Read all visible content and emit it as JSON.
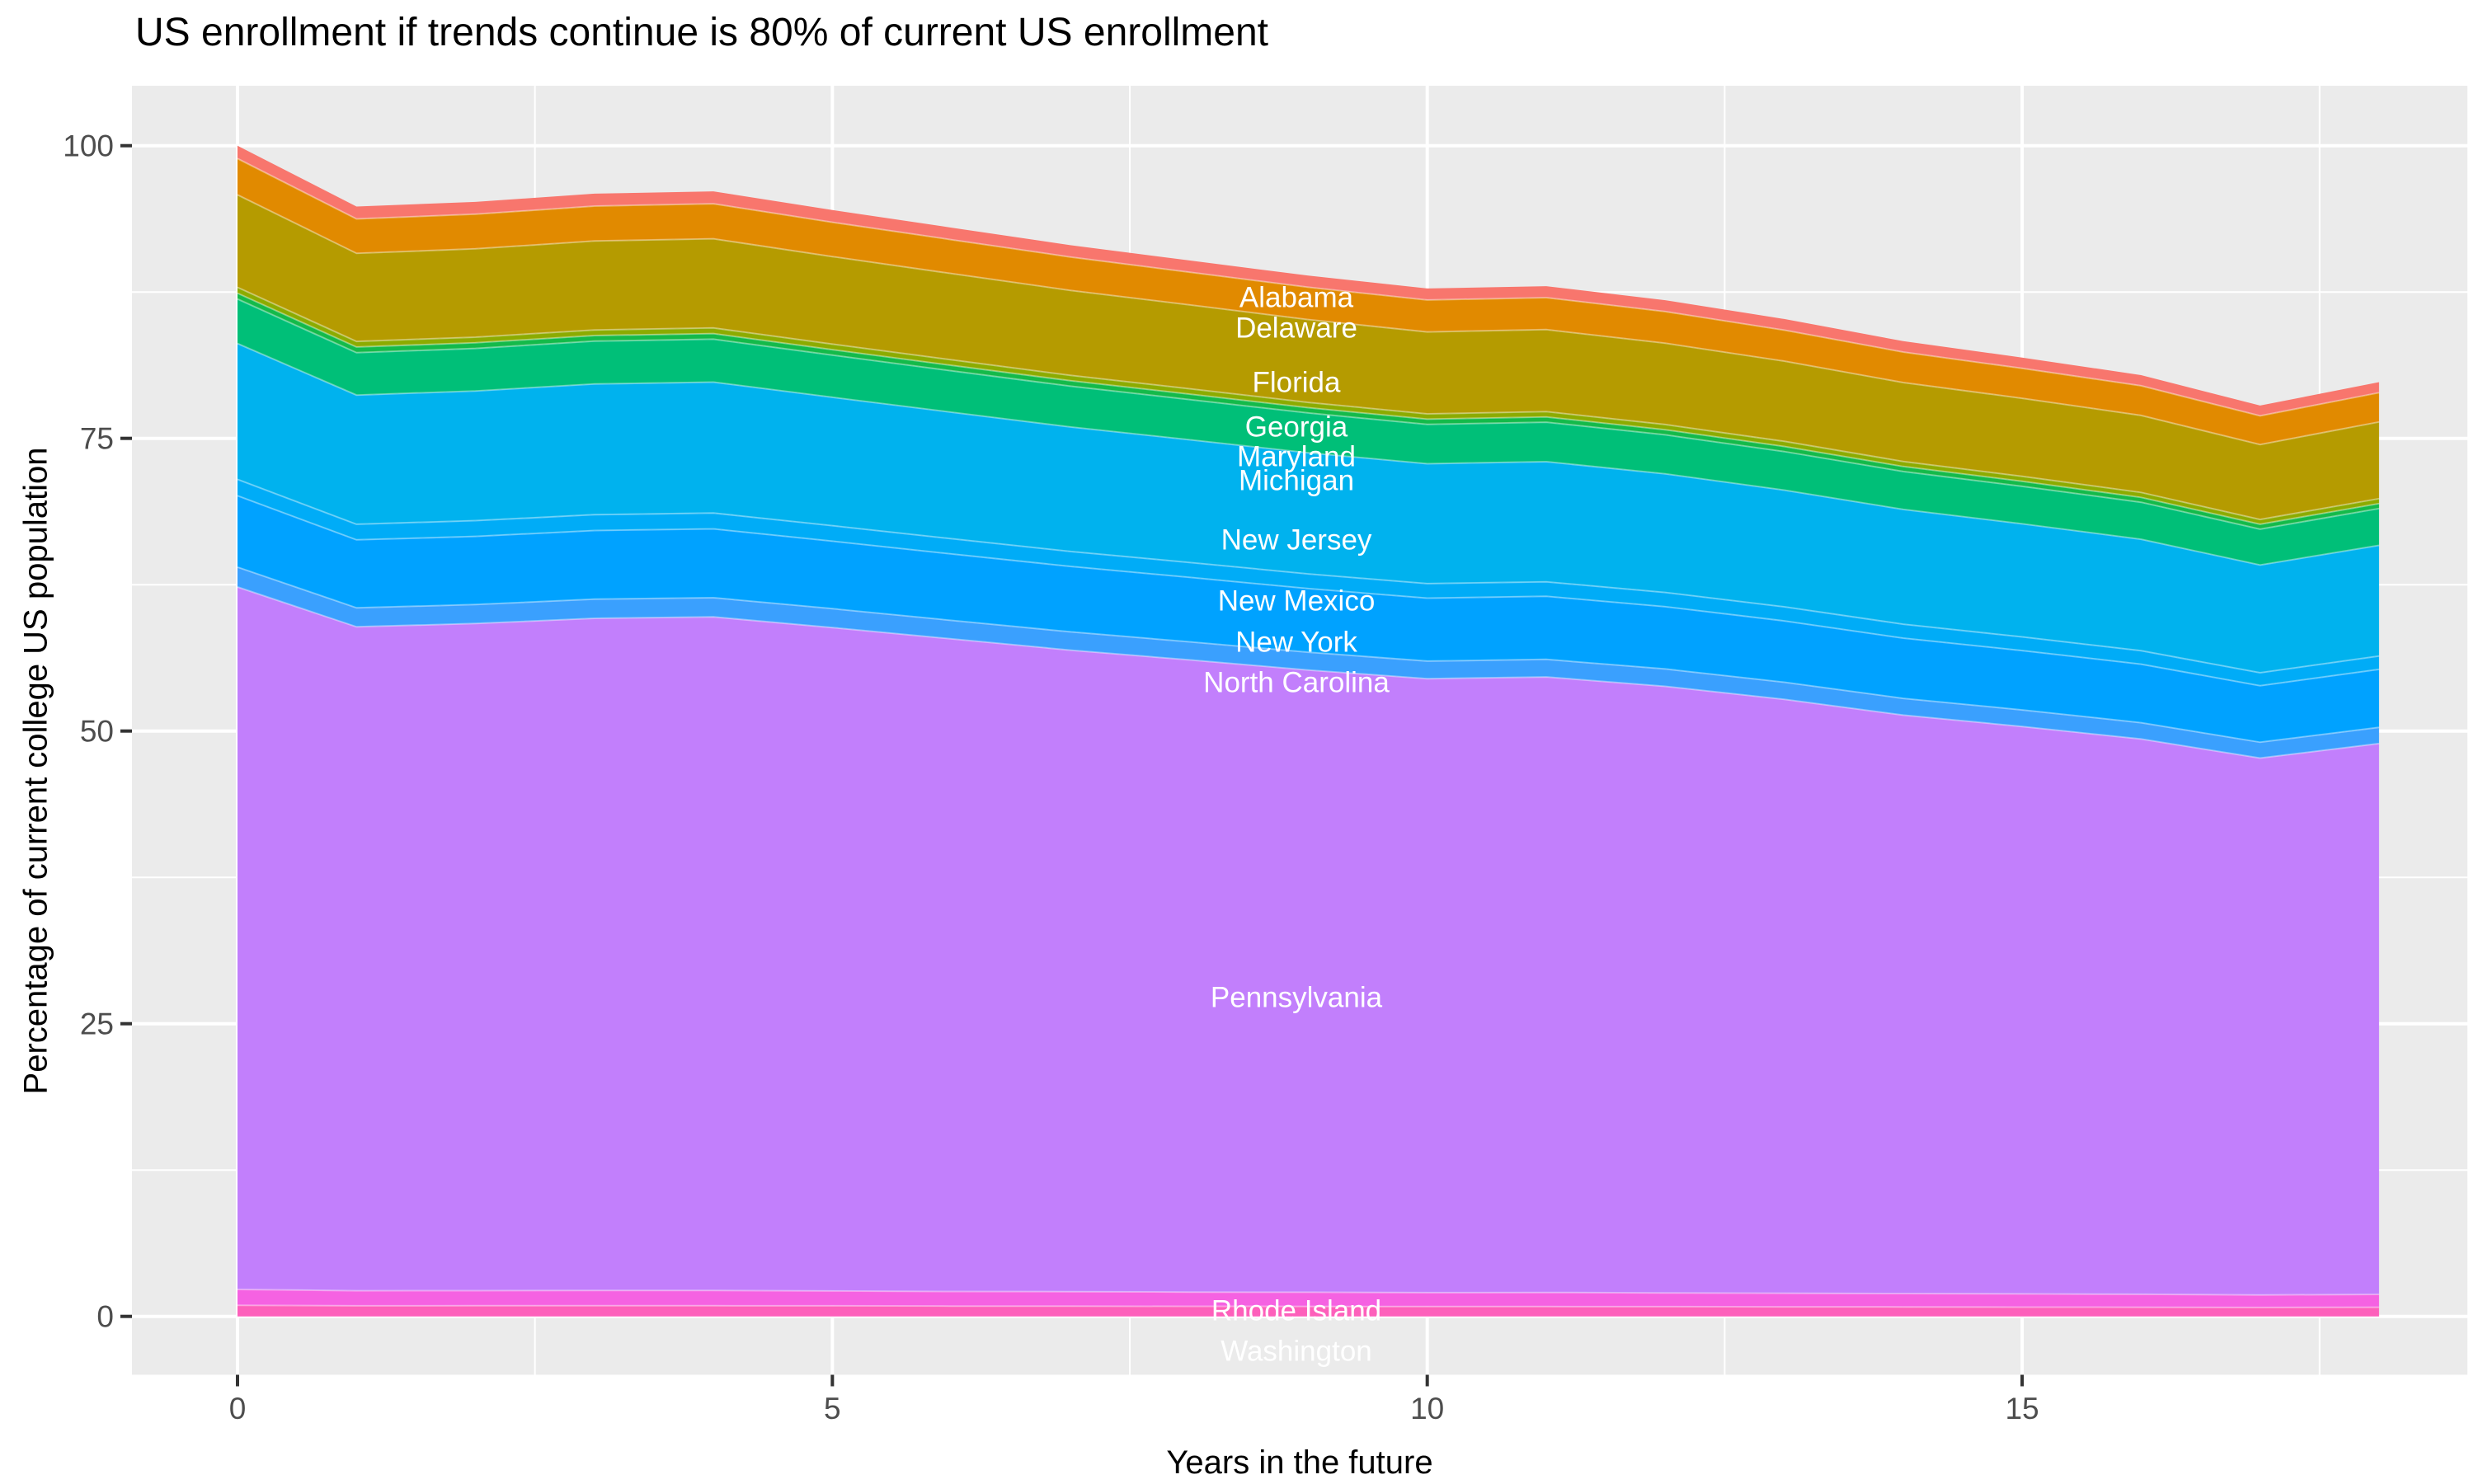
{
  "title": "US enrollment if trends continue is 80% of current US enrollment",
  "chart_data": {
    "type": "area",
    "stacked": true,
    "title": "US enrollment if trends continue is 80% of current US enrollment",
    "xlabel": "Years in the future",
    "ylabel": "Percentage of current college US population",
    "xlim": [
      0,
      18
    ],
    "ylim": [
      0,
      100
    ],
    "grid": "on",
    "legend_position": "labels-inside-areas",
    "panel_background": "#EBEBEB",
    "grid_color": "#FFFFFF",
    "tick_text_color": "#4D4D4D",
    "x": [
      0,
      1,
      2,
      3,
      4,
      5,
      6,
      7,
      8,
      9,
      10,
      11,
      12,
      13,
      14,
      15,
      16,
      17,
      18
    ],
    "x_ticks": [
      {
        "label": "0",
        "value": 0
      },
      {
        "label": "5",
        "value": 5
      },
      {
        "label": "10",
        "value": 10
      },
      {
        "label": "15",
        "value": 15
      }
    ],
    "y_ticks": [
      {
        "label": "0",
        "value": 0
      },
      {
        "label": "25",
        "value": 25
      },
      {
        "label": "50",
        "value": 50
      },
      {
        "label": "75",
        "value": 75
      },
      {
        "label": "100",
        "value": 100
      }
    ],
    "x_minor_gridlines": [
      2.5,
      7.5,
      12.5,
      17.5
    ],
    "y_minor_gridlines": [
      12.5,
      37.5,
      62.5,
      87.5
    ],
    "totals": [
      100,
      94.8,
      95.2,
      95.9,
      96.1,
      94.5,
      93.0,
      91.5,
      90.2,
      88.9,
      87.8,
      88.0,
      86.8,
      85.2,
      83.3,
      81.9,
      80.4,
      77.8,
      79.8
    ],
    "label_x": 8.9,
    "stack_order": "top-to-bottom",
    "series": [
      {
        "name": "Alabama",
        "color": "#F8766D",
        "label_value": 87.0,
        "values": [
          1.1,
          1.05,
          1.05,
          1.06,
          1.06,
          1.04,
          1.03,
          1.01,
          1.0,
          0.99,
          0.98,
          0.98,
          0.97,
          0.95,
          0.93,
          0.92,
          0.91,
          0.88,
          0.9
        ]
      },
      {
        "name": "Delaware",
        "color": "#E18A00",
        "label_value": 84.4,
        "values": [
          3.1,
          2.95,
          2.96,
          2.98,
          2.99,
          2.93,
          2.89,
          2.85,
          2.8,
          2.76,
          2.73,
          2.73,
          2.7,
          2.65,
          2.6,
          2.56,
          2.53,
          2.45,
          2.5
        ]
      },
      {
        "name": "Florida",
        "color": "#B59B00",
        "label_value": 79.8,
        "values": [
          7.9,
          7.52,
          7.55,
          7.6,
          7.62,
          7.48,
          7.37,
          7.26,
          7.16,
          7.08,
          7.0,
          7.01,
          6.95,
          6.85,
          6.74,
          6.66,
          6.58,
          6.4,
          6.55
        ]
      },
      {
        "name": "Georgia",
        "color": "#8CAB00",
        "label_value": 76.0,
        "values": [
          0.5,
          0.48,
          0.48,
          0.48,
          0.48,
          0.47,
          0.47,
          0.46,
          0.46,
          0.45,
          0.45,
          0.45,
          0.44,
          0.44,
          0.43,
          0.43,
          0.42,
          0.41,
          0.42
        ]
      },
      {
        "name": "Maryland",
        "color": "#14BA4A",
        "label_value": 73.4,
        "values": [
          0.5,
          0.48,
          0.48,
          0.48,
          0.48,
          0.47,
          0.47,
          0.46,
          0.46,
          0.45,
          0.45,
          0.45,
          0.44,
          0.44,
          0.43,
          0.43,
          0.42,
          0.41,
          0.42
        ]
      },
      {
        "name": "Michigan",
        "color": "#00BF78",
        "label_value": 71.4,
        "values": [
          3.8,
          3.62,
          3.63,
          3.66,
          3.67,
          3.6,
          3.54,
          3.49,
          3.44,
          3.4,
          3.36,
          3.37,
          3.33,
          3.29,
          3.24,
          3.2,
          3.16,
          3.07,
          3.15
        ]
      },
      {
        "name": "New Jersey",
        "color": "#00B2EE",
        "label_value": 66.3,
        "values": [
          11.6,
          11.04,
          11.08,
          11.16,
          11.18,
          10.97,
          10.8,
          10.63,
          10.48,
          10.35,
          10.24,
          10.26,
          10.13,
          9.97,
          9.8,
          9.66,
          9.52,
          9.2,
          9.45
        ]
      },
      {
        "name": "New Mexico",
        "color": "#00ACF7",
        "label_value": 61.1,
        "values": [
          1.4,
          1.33,
          1.34,
          1.35,
          1.35,
          1.32,
          1.3,
          1.28,
          1.27,
          1.25,
          1.24,
          1.24,
          1.22,
          1.2,
          1.19,
          1.17,
          1.15,
          1.11,
          1.14
        ]
      },
      {
        "name": "New York",
        "color": "#00A2FF",
        "label_value": 57.6,
        "values": [
          6.1,
          5.81,
          5.83,
          5.87,
          5.88,
          5.77,
          5.68,
          5.59,
          5.51,
          5.44,
          5.38,
          5.39,
          5.32,
          5.24,
          5.15,
          5.07,
          5.0,
          4.83,
          4.96
        ]
      },
      {
        "name": "North Carolina",
        "color": "#3AA0FE",
        "label_value": 54.1,
        "values": [
          1.7,
          1.62,
          1.62,
          1.63,
          1.64,
          1.61,
          1.58,
          1.56,
          1.54,
          1.52,
          1.5,
          1.5,
          1.48,
          1.46,
          1.43,
          1.41,
          1.39,
          1.35,
          1.38
        ]
      },
      {
        "name": "Pennsylvania",
        "color": "#C27FFC",
        "label_value": 27.2,
        "values": [
          60.0,
          56.71,
          56.98,
          57.42,
          57.54,
          56.67,
          55.74,
          54.8,
          54.0,
          53.15,
          52.44,
          52.58,
          51.81,
          50.73,
          49.41,
          48.47,
          47.43,
          45.86,
          47.05
        ]
      },
      {
        "name": "Rhode Island",
        "color": "#F562E2",
        "label_value": 0.5,
        "values": [
          1.35,
          1.29,
          1.29,
          1.3,
          1.3,
          1.27,
          1.25,
          1.24,
          1.22,
          1.21,
          1.19,
          1.2,
          1.18,
          1.16,
          1.14,
          1.13,
          1.11,
          1.07,
          1.1
        ]
      },
      {
        "name": "Washington",
        "color": "#FD60BB",
        "label_value": -3.0,
        "values": [
          0.95,
          0.9,
          0.91,
          0.91,
          0.91,
          0.9,
          0.88,
          0.87,
          0.86,
          0.85,
          0.84,
          0.84,
          0.83,
          0.82,
          0.81,
          0.79,
          0.78,
          0.76,
          0.78
        ]
      }
    ]
  }
}
